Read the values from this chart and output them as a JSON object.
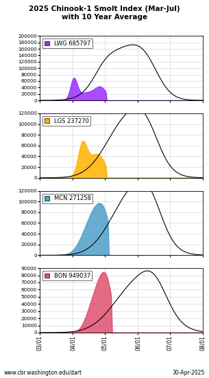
{
  "title_line1": "2025 Chinook-1 Smolt Index (Mar-Jul)",
  "title_line2": "with 10 Year Average",
  "footer_left": "www.cbr.washington.edu/dart",
  "footer_right": "30-Apr-2025",
  "x_labels": [
    "03/01",
    "04/01",
    "05/01",
    "06/01",
    "07/01",
    "08/01"
  ],
  "panels": [
    {
      "label": "LWG 685797",
      "color": "#9B30FF",
      "ylim": [
        0,
        200000
      ],
      "yticks": [
        0,
        20000,
        40000,
        60000,
        80000,
        100000,
        120000,
        140000,
        160000,
        180000,
        200000
      ]
    },
    {
      "label": "LGS 237270",
      "color": "#FFB300",
      "ylim": [
        0,
        120000
      ],
      "yticks": [
        0,
        20000,
        40000,
        60000,
        80000,
        100000,
        120000
      ]
    },
    {
      "label": "MCN 271258",
      "color": "#4FA0C8",
      "ylim": [
        0,
        120000
      ],
      "yticks": [
        0,
        20000,
        40000,
        60000,
        80000,
        100000,
        120000
      ]
    },
    {
      "label": "BON 949037",
      "color": "#E05070",
      "ylim": [
        0,
        90000
      ],
      "yticks": [
        0,
        10000,
        20000,
        30000,
        40000,
        50000,
        60000,
        70000,
        80000,
        90000
      ]
    }
  ],
  "xtick_pos": [
    0,
    31,
    61,
    92,
    122,
    153
  ],
  "n_days": 154
}
